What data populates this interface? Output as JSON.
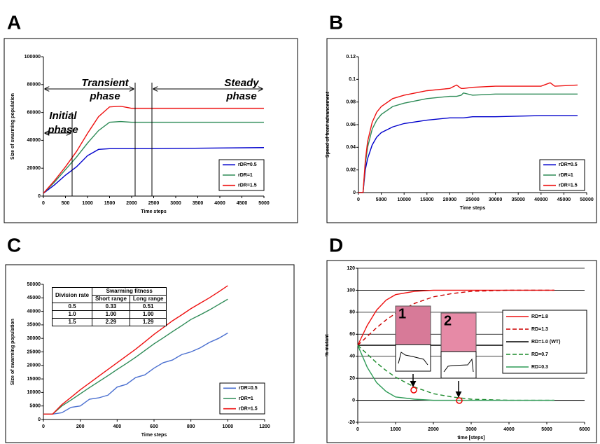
{
  "chart_data": [
    {
      "type": "line",
      "panel_label": "A",
      "xlabel": "Time steps",
      "ylabel": "Size of swarming population",
      "annotations": [
        "Initial phase",
        "Transient phase",
        "Steady phase"
      ],
      "x": [
        0,
        250,
        500,
        750,
        1000,
        1250,
        1500,
        1750,
        2000,
        2500,
        3000,
        4000,
        5000
      ],
      "series": [
        {
          "name": "rDR=0.5",
          "color": "#0000cc",
          "values": [
            2000,
            8000,
            15000,
            21000,
            29000,
            33500,
            34000,
            34000,
            34000,
            34000,
            34200,
            34500,
            34800
          ]
        },
        {
          "name": "rDR=1",
          "color": "#2e8b57",
          "values": [
            2000,
            10000,
            19000,
            28000,
            38000,
            47000,
            53000,
            53500,
            53000,
            53000,
            53000,
            53000,
            53000
          ]
        },
        {
          "name": "rDR=1.5",
          "color": "#ee1111",
          "values": [
            2000,
            11000,
            21000,
            32000,
            45000,
            57000,
            64000,
            64500,
            63000,
            63000,
            63000,
            63000,
            63000
          ]
        }
      ],
      "xlim": [
        0,
        5000
      ],
      "xticks": [
        0,
        500,
        1000,
        1500,
        2000,
        2500,
        3000,
        3500,
        4000,
        4500,
        5000
      ],
      "ylim": [
        0,
        100000
      ],
      "yticks": [
        0,
        20000,
        40000,
        60000,
        80000,
        100000
      ],
      "grid": false
    },
    {
      "type": "line",
      "panel_label": "B",
      "xlabel": "Time steps",
      "ylabel": "Speed of front advancement",
      "x": [
        0,
        1000,
        1500,
        2000,
        3000,
        4000,
        5000,
        7500,
        10000,
        15000,
        20000,
        21500,
        22500,
        23000,
        25000,
        30000,
        40000,
        42000,
        43000,
        48000
      ],
      "series": [
        {
          "name": "rDR=0.5",
          "color": "#0000cc",
          "values": [
            0,
            0,
            0.02,
            0.03,
            0.042,
            0.049,
            0.053,
            0.058,
            0.061,
            0.064,
            0.066,
            0.066,
            0.066,
            0.066,
            0.067,
            0.067,
            0.068,
            0.068,
            0.068,
            0.068
          ]
        },
        {
          "name": "rDR=1",
          "color": "#2e8b57",
          "values": [
            0,
            0,
            0.025,
            0.04,
            0.056,
            0.064,
            0.069,
            0.076,
            0.079,
            0.083,
            0.085,
            0.085,
            0.086,
            0.088,
            0.086,
            0.087,
            0.087,
            0.087,
            0.087,
            0.087
          ]
        },
        {
          "name": "rDR=1.5",
          "color": "#ee1111",
          "values": [
            0,
            0,
            0.028,
            0.045,
            0.062,
            0.071,
            0.076,
            0.083,
            0.086,
            0.09,
            0.092,
            0.095,
            0.092,
            0.092,
            0.093,
            0.094,
            0.094,
            0.097,
            0.094,
            0.095
          ]
        }
      ],
      "xlim": [
        0,
        50000
      ],
      "xticks": [
        0,
        5000,
        10000,
        15000,
        20000,
        25000,
        30000,
        35000,
        40000,
        45000,
        50000
      ],
      "ylim": [
        0,
        0.12
      ],
      "yticks": [
        0,
        0.02,
        0.04,
        0.06,
        0.08,
        0.1,
        0.12
      ],
      "grid": false
    },
    {
      "type": "line",
      "panel_label": "C",
      "xlabel": "Time steps",
      "ylabel": "Size of swarming population",
      "table": {
        "header": [
          "Division rate",
          "Swarming fitness",
          "Short range",
          "Long range"
        ],
        "rows": [
          [
            "0.5",
            "0.33",
            "0.51"
          ],
          [
            "1.0",
            "1.00",
            "1.00"
          ],
          [
            "1.5",
            "2.29",
            "1.29"
          ]
        ]
      },
      "x": [
        0,
        50,
        100,
        150,
        200,
        250,
        300,
        350,
        400,
        450,
        500,
        550,
        600,
        650,
        700,
        750,
        800,
        850,
        900,
        950,
        1000
      ],
      "series": [
        {
          "name": "rDR=0.5",
          "color": "#4a6fd0",
          "values": [
            2000,
            2000,
            2500,
            4500,
            5000,
            7500,
            8000,
            9000,
            12000,
            13000,
            15500,
            16500,
            19000,
            21000,
            22000,
            24000,
            25000,
            26500,
            28500,
            30000,
            32000
          ]
        },
        {
          "name": "rDR=1",
          "color": "#2e8b57",
          "values": [
            2000,
            2000,
            5000,
            7200,
            9500,
            11800,
            14000,
            16200,
            18500,
            20700,
            23000,
            25500,
            28000,
            30200,
            32500,
            34700,
            37000,
            38700,
            40500,
            42500,
            44500
          ]
        },
        {
          "name": "rDR=1.5",
          "color": "#ee1111",
          "values": [
            2000,
            2000,
            5500,
            8200,
            11000,
            13500,
            16000,
            18500,
            21000,
            23500,
            26000,
            28700,
            31500,
            34000,
            36500,
            38700,
            41000,
            43000,
            45000,
            47200,
            49500
          ]
        }
      ],
      "xlim": [
        0,
        1200
      ],
      "xticks": [
        0,
        200,
        400,
        600,
        800,
        1000,
        1200
      ],
      "ylim": [
        0,
        50000
      ],
      "yticks": [
        0,
        5000,
        10000,
        15000,
        20000,
        25000,
        30000,
        35000,
        40000,
        45000,
        50000
      ],
      "grid": false
    },
    {
      "type": "line",
      "panel_label": "D",
      "xlabel": "time [steps]",
      "ylabel": "% mutant",
      "insets": [
        "1",
        "2"
      ],
      "x": [
        0,
        250,
        500,
        750,
        1000,
        1500,
        2000,
        2500,
        3000,
        4000,
        5200
      ],
      "series": [
        {
          "name": "RD=1.8",
          "color": "#ee1111",
          "dash": false,
          "values": [
            50,
            68,
            82,
            91,
            96,
            99,
            100,
            100,
            100,
            100,
            100
          ]
        },
        {
          "name": "RD=1.3",
          "color": "#cc0000",
          "dash": true,
          "values": [
            50,
            58,
            66,
            73,
            79,
            88,
            94,
            97,
            99,
            100,
            100
          ]
        },
        {
          "name": "RD=1.0 (WT)",
          "color": "#000000",
          "dash": false,
          "values": [
            50,
            50,
            50,
            50,
            50,
            50,
            50,
            50,
            50,
            50,
            50
          ]
        },
        {
          "name": "RD=0.7",
          "color": "#1a8a2a",
          "dash": true,
          "values": [
            50,
            42,
            34,
            27,
            21,
            12,
            6,
            3,
            1,
            0,
            0
          ]
        },
        {
          "name": "RD=0.3",
          "color": "#2e9b57",
          "dash": false,
          "values": [
            50,
            30,
            16,
            8,
            3,
            1,
            0,
            0,
            0,
            0,
            0
          ]
        }
      ],
      "xlim": [
        0,
        6000
      ],
      "xticks": [
        0,
        1000,
        2000,
        3000,
        4000,
        5000,
        6000
      ],
      "ylim": [
        -20,
        120
      ],
      "yticks": [
        -20,
        0,
        20,
        40,
        60,
        80,
        100,
        120
      ],
      "grid": true
    }
  ]
}
